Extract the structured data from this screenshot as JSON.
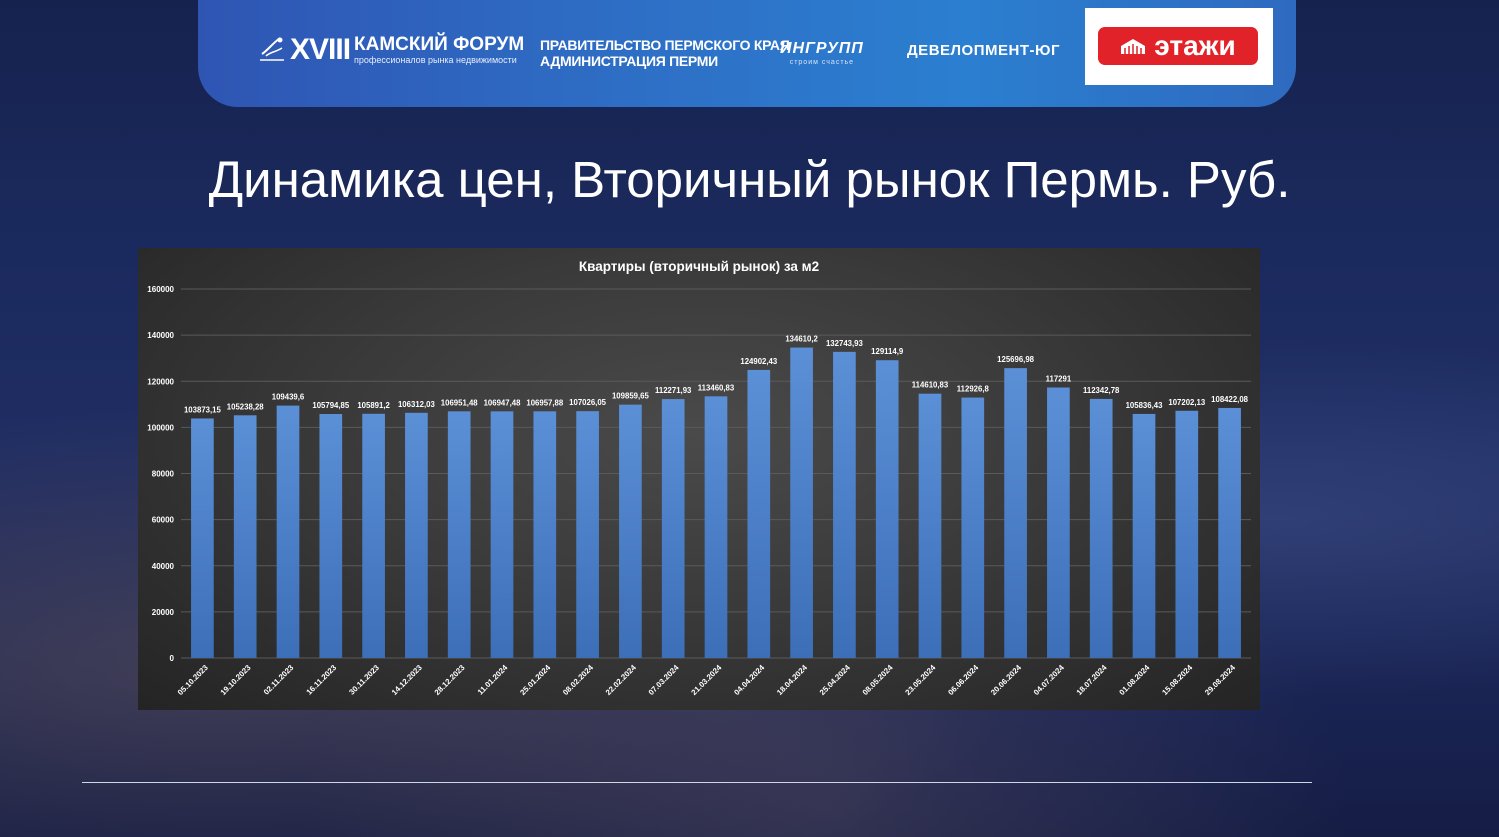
{
  "header": {
    "forum_numeral": "XVIII",
    "forum_title": "КАМСКИЙ ФОРУМ",
    "forum_subtitle": "профессионалов рынка недвижимости",
    "gov_line1": "ПРАВИТЕЛЬСТВО ПЕРМСКОГО КРАЯ",
    "gov_line2": "АДМИНИСТРАЦИЯ ПЕРМИ",
    "ingrupp_name": "ИНГРУПП",
    "ingrupp_slogan": "строим счастье",
    "developer_name": "ДЕВЕЛОПМЕНТ-ЮГ",
    "etazhi_name": "этажи",
    "etazhi_color": "#e12229"
  },
  "slide_title": "Динамика цен, Вторичный рынок Пермь. Руб.",
  "chart_data": {
    "type": "bar",
    "title": "Квартиры (вторичный рынок) за м2",
    "xlabel": "",
    "ylabel": "",
    "ylim": [
      0,
      160000
    ],
    "yticks": [
      0,
      20000,
      40000,
      60000,
      80000,
      100000,
      120000,
      140000,
      160000
    ],
    "grid": true,
    "legend": "none",
    "bar_color": "#4f81c9",
    "categories": [
      "05.10.2023",
      "19.10.2023",
      "02.11.2023",
      "16.11.2023",
      "30.11.2023",
      "14.12.2023",
      "28.12.2023",
      "11.01.2024",
      "25.01.2024",
      "08.02.2024",
      "22.02.2024",
      "07.03.2024",
      "21.03.2024",
      "04.04.2024",
      "18.04.2024",
      "25.04.2024",
      "08.05.2024",
      "23.05.2024",
      "06.06.2024",
      "20.06.2024",
      "04.07.2024",
      "18.07.2024",
      "01.08.2024",
      "15.08.2024",
      "29.08.2024"
    ],
    "values": [
      103873.15,
      105238.28,
      109439.6,
      105794.85,
      105891.2,
      106312.03,
      106951.48,
      106947.48,
      106957.88,
      107026.05,
      109859.65,
      112271.93,
      113460.83,
      124902.43,
      134610.2,
      132743.93,
      129114.9,
      114610.83,
      112926.8,
      125696.98,
      117291,
      112342.78,
      105836.43,
      107202.13,
      108422.08
    ],
    "value_labels": [
      "103873,15",
      "105238,28",
      "109439,6",
      "105794,85",
      "105891,2",
      "106312,03",
      "106951,48",
      "106947,48",
      "106957,88",
      "107026,05",
      "109859,65",
      "112271,93",
      "113460,83",
      "124902,43",
      "134610,2",
      "132743,93",
      "129114,9",
      "114610,83",
      "112926,8",
      "125696,98",
      "117291",
      "112342,78",
      "105836,43",
      "107202,13",
      "108422,08"
    ]
  }
}
